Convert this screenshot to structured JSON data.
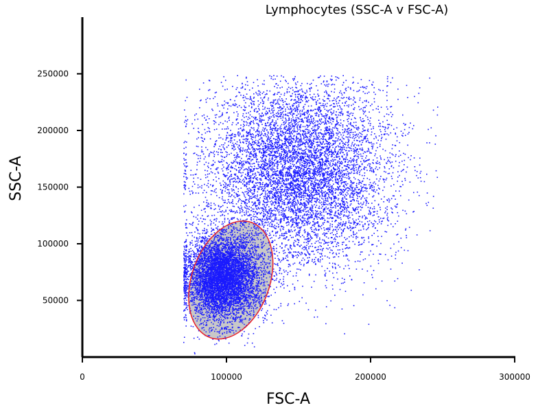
{
  "chart_data": {
    "type": "scatter",
    "title": "Lymphocytes (SSC-A v FSC-A)",
    "xlabel": "FSC-A",
    "ylabel": "SSC-A",
    "xlim": [
      0,
      300000
    ],
    "ylim": [
      0,
      300000
    ],
    "xticks": [
      0,
      100000,
      200000,
      300000
    ],
    "yticks": [
      50000,
      100000,
      150000,
      200000,
      250000
    ],
    "xtick_labels": [
      "0",
      "100000",
      "200000",
      "300000"
    ],
    "ytick_labels": [
      "50000",
      "100000",
      "150000",
      "200000",
      "250000"
    ],
    "grid": false,
    "point_color": "#1a1aff",
    "series": [
      {
        "values_range": {
          "x": [
            70000,
            249000
          ],
          "y": [
            3000,
            249000
          ]
        },
        "clusters": [
          {
            "center": [
              150000,
              165000
            ],
            "spread": [
              32000,
              42000
            ],
            "weight": 0.55
          },
          {
            "center": [
              97000,
              70000
            ],
            "spread": [
              13000,
              19000
            ],
            "weight": 0.45
          }
        ]
      }
    ],
    "gate": {
      "shape": "ellipse",
      "center": [
        103000,
        68000
      ],
      "radii": [
        27000,
        54000
      ],
      "rotation_deg": 20,
      "stroke_color": "#e8202a",
      "fill_color": "#c8c8c8"
    }
  }
}
